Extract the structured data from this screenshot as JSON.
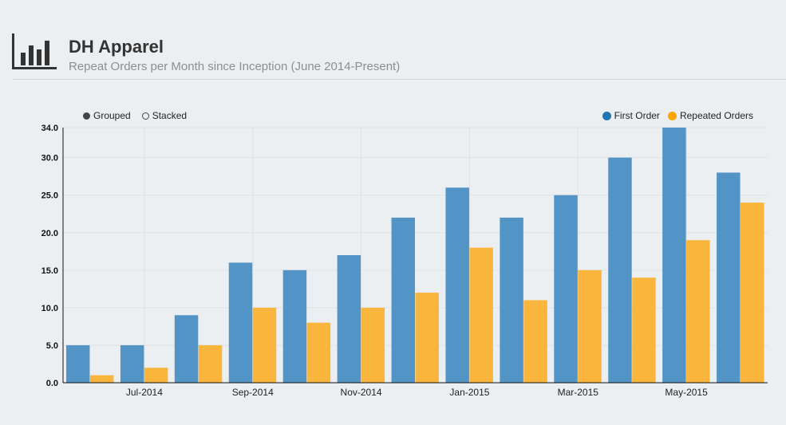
{
  "header": {
    "title": "DH Apparel",
    "subtitle": "Repeat Orders per Month since Inception (June 2014-Present)",
    "icon": "bar-chart-icon"
  },
  "controls": {
    "grouped_label": "Grouped",
    "stacked_label": "Stacked",
    "selected": "Grouped"
  },
  "chart_data": {
    "type": "bar",
    "mode": "grouped",
    "categories": [
      "Jun-2014",
      "Jul-2014",
      "Aug-2014",
      "Sep-2014",
      "Oct-2014",
      "Nov-2014",
      "Dec-2014",
      "Jan-2015",
      "Feb-2015",
      "Mar-2015",
      "Apr-2015",
      "May-2015",
      "Jun-2015"
    ],
    "x_tick_labels": [
      "Jul-2014",
      "Sep-2014",
      "Nov-2014",
      "Jan-2015",
      "Mar-2015",
      "May-2015"
    ],
    "series": [
      {
        "name": "First Order",
        "color": "#5294c5",
        "values": [
          5,
          5,
          9,
          16,
          15,
          17,
          22,
          26,
          22,
          25,
          30,
          34,
          28
        ]
      },
      {
        "name": "Repeated Orders",
        "color": "#fab53c",
        "values": [
          1,
          2,
          5,
          10,
          8,
          10,
          12,
          18,
          11,
          15,
          14,
          19,
          24
        ]
      }
    ],
    "y_ticks": [
      "0.0",
      "5.0",
      "10.0",
      "15.0",
      "20.0",
      "25.0",
      "30.0",
      "34.0"
    ],
    "ylim": [
      0,
      34
    ],
    "grid": true,
    "legend_position": "top-right",
    "legend_colors": {
      "First Order": "#1f77b4",
      "Repeated Orders": "#ffa500"
    }
  }
}
